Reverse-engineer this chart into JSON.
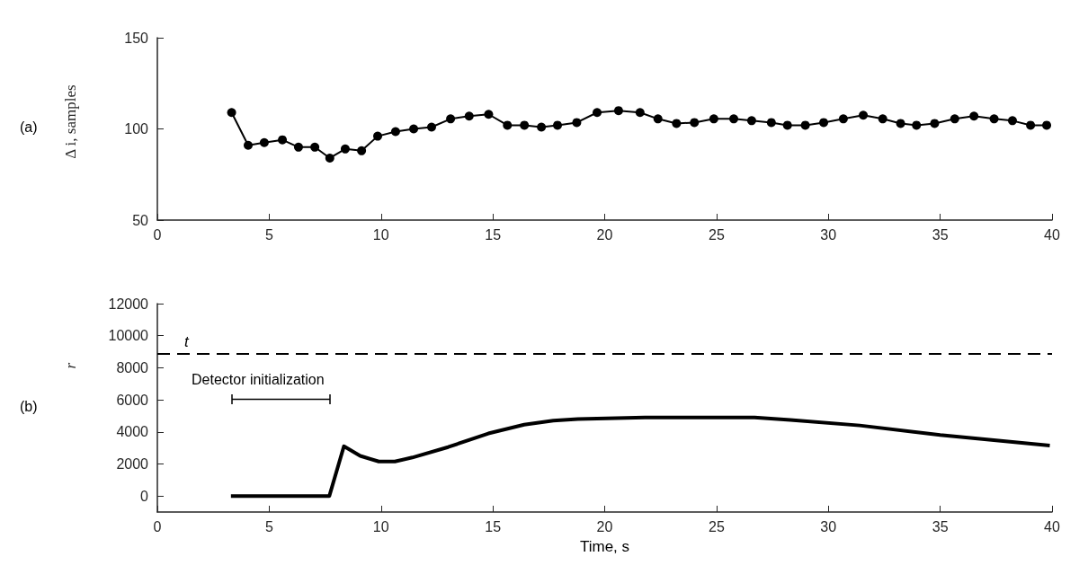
{
  "chart_data": [
    {
      "type": "line",
      "ylabel": "Δ i, samples",
      "annotations": [
        "(a)"
      ],
      "marker": "circle",
      "line_style": "solid",
      "x": [
        3.32,
        4.06,
        4.78,
        5.59,
        6.31,
        7.04,
        7.71,
        8.4,
        9.13,
        9.85,
        10.65,
        11.46,
        12.26,
        13.11,
        13.94,
        14.81,
        15.65,
        16.41,
        17.17,
        17.89,
        18.75,
        19.66,
        20.62,
        21.58,
        22.38,
        23.21,
        24.01,
        24.88,
        25.77,
        26.57,
        27.45,
        28.17,
        28.97,
        29.79,
        30.67,
        31.56,
        32.43,
        33.23,
        33.94,
        34.75,
        35.65,
        36.51,
        37.41,
        38.23,
        39.04,
        39.76
      ],
      "series": [
        {
          "color": "#000000",
          "values": [
            109,
            91,
            92.5,
            94,
            90,
            90,
            84,
            89,
            88,
            96,
            98.5,
            100,
            101,
            105.5,
            107,
            108,
            102,
            102,
            101,
            102,
            103.5,
            109,
            110,
            109,
            105.5,
            103,
            103.5,
            105.5,
            105.5,
            104.5,
            103.5,
            102,
            102,
            103.5,
            105.5,
            107.5,
            105.5,
            103,
            102,
            103,
            105.5,
            107,
            105.5,
            104.5,
            102,
            102
          ]
        }
      ],
      "xlim": [
        0,
        40
      ],
      "xticks": [
        0,
        5,
        10,
        15,
        20,
        25,
        30,
        35,
        40
      ],
      "ylim": [
        50,
        150
      ],
      "yticks": [
        50,
        100,
        150
      ],
      "grid": false
    },
    {
      "type": "line",
      "xlabel": "Time, s",
      "ylabel": "r",
      "annotations": [
        "(b)",
        "Detector initialization"
      ],
      "marker": "none",
      "line_style": "solid",
      "x": [
        3.29,
        7.69,
        8.34,
        9.07,
        9.9,
        10.62,
        11.4,
        13.0,
        14.8,
        16.4,
        17.7,
        18.8,
        21.8,
        24.9,
        26.7,
        28.3,
        31.4,
        35.0,
        39.9
      ],
      "series": [
        {
          "color": "#000000",
          "values": [
            0,
            0,
            3100,
            2500,
            2150,
            2150,
            2400,
            3050,
            3900,
            4450,
            4700,
            4800,
            4900,
            4900,
            4900,
            4750,
            4400,
            3800,
            3150
          ]
        }
      ],
      "xlim": [
        0,
        40
      ],
      "xticks": [
        0,
        5,
        10,
        15,
        20,
        25,
        30,
        35,
        40
      ],
      "ylim": [
        -1000,
        12000
      ],
      "yticks": [
        0,
        2000,
        4000,
        6000,
        8000,
        10000,
        12000
      ],
      "ref_lines": [
        {
          "axis": "y",
          "value": 8900,
          "label": "t",
          "line_style": "dashed",
          "color": "#000000"
        }
      ],
      "grid": false
    }
  ]
}
